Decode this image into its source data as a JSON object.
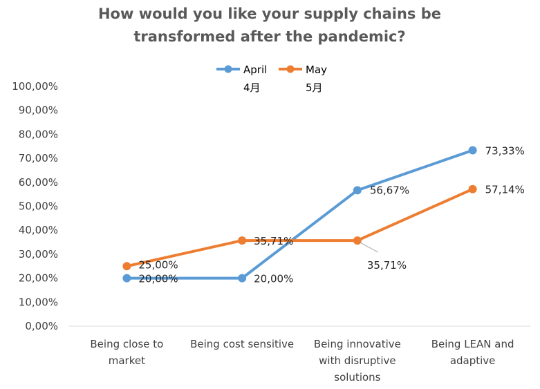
{
  "chart_data": {
    "type": "line",
    "title": [
      "How would you like your supply chains be",
      "transformed after the pandemic?"
    ],
    "categories": [
      [
        "Being close to",
        "market"
      ],
      [
        "Being cost sensitive"
      ],
      [
        "Being innovative",
        "with disruptive",
        "solutions"
      ],
      [
        "Being LEAN and",
        "adaptive"
      ]
    ],
    "ylim": [
      0,
      100
    ],
    "yticks": [
      "0,00%",
      "10,00%",
      "20,00%",
      "30,00%",
      "40,00%",
      "50,00%",
      "60,00%",
      "70,00%",
      "80,00%",
      "90,00%",
      "100,00%"
    ],
    "grid": false,
    "legend_position": "top",
    "series": [
      {
        "name": "April",
        "name_sub": "4月",
        "color": "#5B9BD5",
        "values": [
          20.0,
          20.0,
          56.67,
          73.33
        ],
        "labels": [
          "20,00%",
          "20,00%",
          "56,67%",
          "73,33%"
        ]
      },
      {
        "name": "May",
        "name_sub": "5月",
        "color": "#ED7D31",
        "values": [
          25.0,
          35.71,
          35.71,
          57.14
        ],
        "labels": [
          "25,00%",
          "35,71%",
          "35,71%",
          "57,14%"
        ]
      }
    ]
  }
}
